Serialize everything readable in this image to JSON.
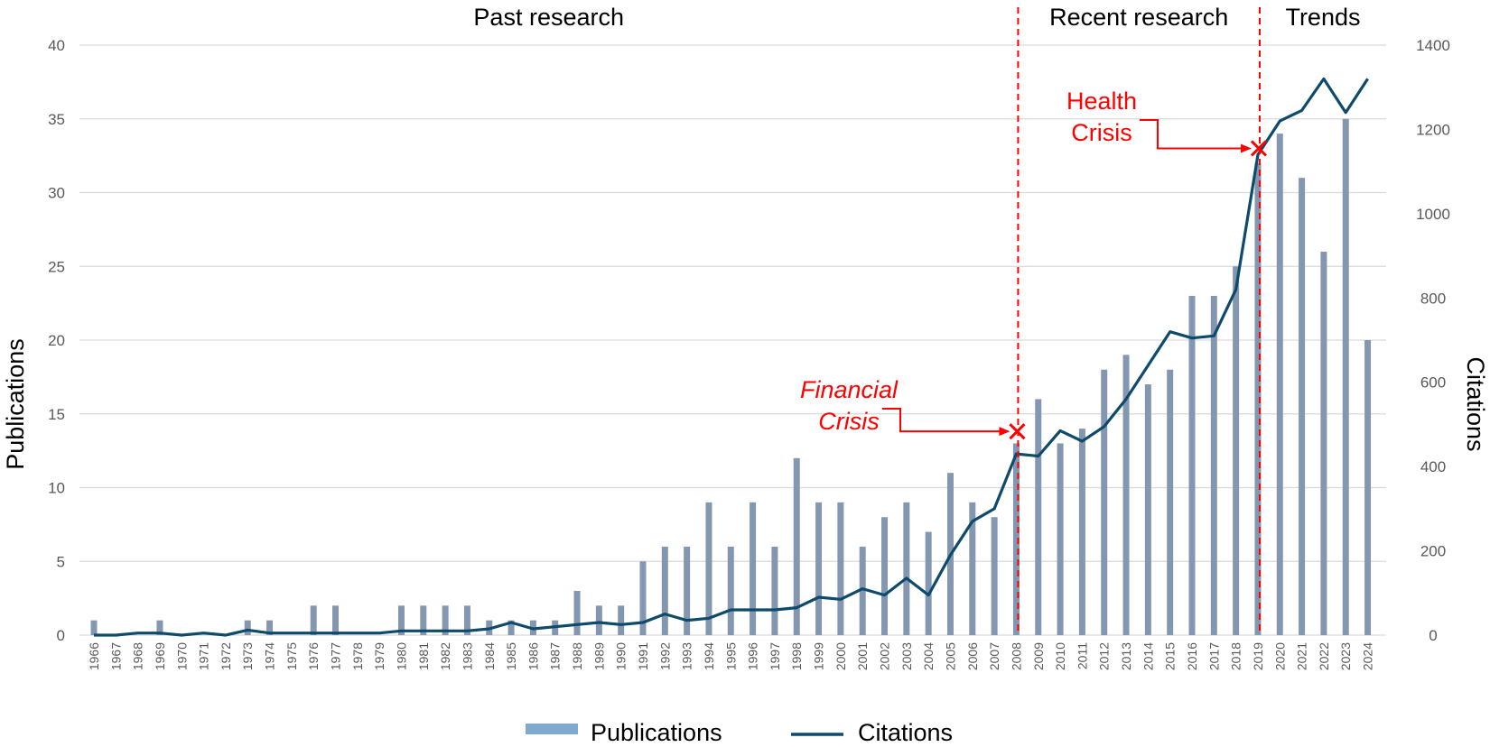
{
  "chart_data": {
    "type": "bar",
    "title": "",
    "years": [
      "1966",
      "1967",
      "1968",
      "1969",
      "1970",
      "1971",
      "1972",
      "1973",
      "1974",
      "1975",
      "1976",
      "1977",
      "1978",
      "1979",
      "1980",
      "1981",
      "1982",
      "1983",
      "1984",
      "1985",
      "1986",
      "1987",
      "1988",
      "1989",
      "1990",
      "1991",
      "1992",
      "1993",
      "1994",
      "1995",
      "1996",
      "1997",
      "1998",
      "1999",
      "2000",
      "2001",
      "2002",
      "2003",
      "2004",
      "2005",
      "2006",
      "2007",
      "2008",
      "2009",
      "2010",
      "2011",
      "2012",
      "2013",
      "2014",
      "2015",
      "2016",
      "2017",
      "2018",
      "2019",
      "2020",
      "2021",
      "2022",
      "2023",
      "2024"
    ],
    "series": [
      {
        "name": "Publications",
        "type": "bar",
        "axis": "left",
        "color": "#8497b0",
        "legend_color": "#7fa9cf",
        "values": [
          1,
          0,
          0,
          1,
          0,
          0,
          0,
          1,
          1,
          0,
          2,
          2,
          0,
          0,
          2,
          2,
          2,
          2,
          1,
          1,
          1,
          1,
          3,
          2,
          2,
          5,
          6,
          6,
          9,
          6,
          9,
          6,
          12,
          9,
          9,
          6,
          8,
          9,
          7,
          11,
          9,
          8,
          13,
          16,
          13,
          14,
          18,
          19,
          17,
          18,
          23,
          23,
          25,
          32,
          34,
          31,
          26,
          35,
          20
        ]
      },
      {
        "name": "Citations",
        "type": "line",
        "axis": "right",
        "color": "#0e4a6b",
        "values": [
          0,
          0,
          5,
          5,
          0,
          5,
          0,
          12,
          5,
          5,
          5,
          5,
          5,
          5,
          10,
          10,
          10,
          10,
          15,
          30,
          15,
          20,
          25,
          30,
          25,
          30,
          50,
          35,
          40,
          60,
          60,
          60,
          65,
          90,
          85,
          110,
          95,
          135,
          95,
          190,
          270,
          300,
          430,
          425,
          485,
          460,
          495,
          560,
          640,
          720,
          705,
          710,
          820,
          1140,
          1220,
          1245,
          1320,
          1240,
          1320
        ]
      }
    ],
    "y_left": {
      "label": "Publications",
      "min": 0,
      "max": 40,
      "ticks": [
        "0",
        "5",
        "10",
        "15",
        "20",
        "25",
        "30",
        "35",
        "40"
      ]
    },
    "y_right": {
      "label": "Citations",
      "min": 0,
      "max": 1400,
      "ticks": [
        "0",
        "200",
        "400",
        "600",
        "800",
        "1000",
        "1200",
        "1400"
      ]
    },
    "grid": true,
    "legend": {
      "position": "bottom",
      "items": [
        "Publications",
        "Citations"
      ]
    },
    "periods": [
      {
        "label": "Past research",
        "from": "1966",
        "to": "2008"
      },
      {
        "label": "Recent research",
        "from": "2008",
        "to": "2019"
      },
      {
        "label": "Trends",
        "from": "2019",
        "to": "2024"
      }
    ],
    "dividers": [
      "2008",
      "2019"
    ],
    "annotations": [
      {
        "line1": "Financial",
        "line2": "Crisis",
        "year": "2008",
        "italic": true,
        "color": "#ff0000"
      },
      {
        "line1": "Health",
        "line2": "Crisis",
        "year": "2019",
        "italic": false,
        "color": "#ff0000"
      }
    ]
  }
}
